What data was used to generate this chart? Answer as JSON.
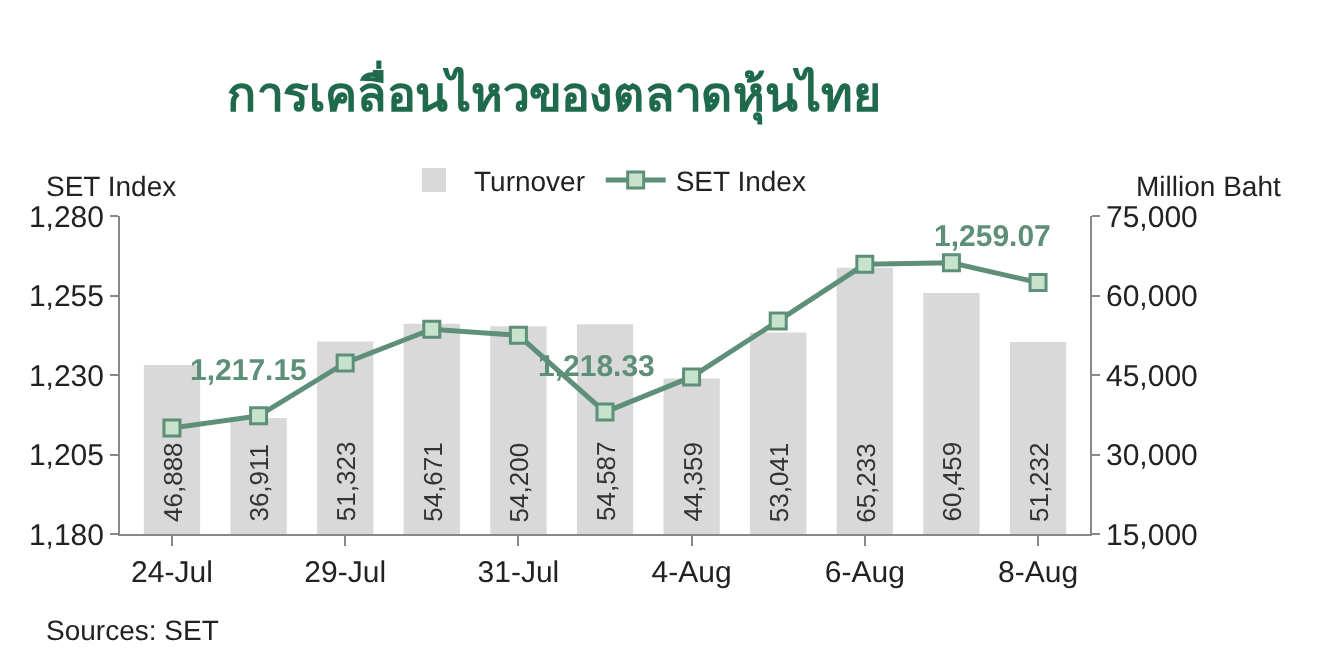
{
  "chart_data": {
    "type": "bar",
    "title": "การเคลื่อนไหวของตลาดหุ้นไทย",
    "ylabel": "SET Index",
    "y2label": "Million Baht",
    "categories": [
      "24-Jul",
      null,
      "29-Jul",
      null,
      "31-Jul",
      null,
      "4-Aug",
      null,
      "6-Aug",
      null,
      "8-Aug"
    ],
    "series": [
      {
        "name": "Turnover",
        "axis": "y2",
        "color": "#d9d9d9",
        "values": [
          46888,
          36911,
          51323,
          54671,
          54200,
          54587,
          44359,
          53041,
          65233,
          60459,
          51232
        ],
        "value_labels": [
          "46,888",
          "36,911",
          "51,323",
          "54,671",
          "54,200",
          "54,587",
          "44,359",
          "53,041",
          "65,233",
          "60,459",
          "51,232"
        ]
      },
      {
        "name": "SET Index",
        "type": "line",
        "axis": "y",
        "color": "#5e8f78",
        "marker": "square",
        "values": [
          1213.3,
          1217.15,
          1233.8,
          1244.4,
          1242.5,
          1218.33,
          1229.4,
          1247,
          1264.8,
          1265.3,
          1259.07
        ]
      }
    ],
    "ylim": [
      1180,
      1280
    ],
    "yticks": [
      {
        "value": 1180,
        "label": "1,180"
      },
      {
        "value": 1205,
        "label": "1,205"
      },
      {
        "value": 1230,
        "label": "1,230"
      },
      {
        "value": 1255,
        "label": "1,255"
      },
      {
        "value": 1280,
        "label": "1,280"
      }
    ],
    "y2lim": [
      15000,
      75000
    ],
    "y2ticks": [
      {
        "value": 15000,
        "label": "15,000"
      },
      {
        "value": 30000,
        "label": "30,000"
      },
      {
        "value": 45000,
        "label": "45,000"
      },
      {
        "value": 60000,
        "label": "60,000"
      },
      {
        "value": 75000,
        "label": "75,000"
      }
    ],
    "grid": false,
    "legend": "top",
    "annotations": [
      {
        "text": "1,217.15",
        "y": 1217.15
      },
      {
        "text": "1,218.33",
        "y": 1218.33
      },
      {
        "text": "1,259.07",
        "y": 1259.07
      },
      "Sources: SET"
    ]
  }
}
